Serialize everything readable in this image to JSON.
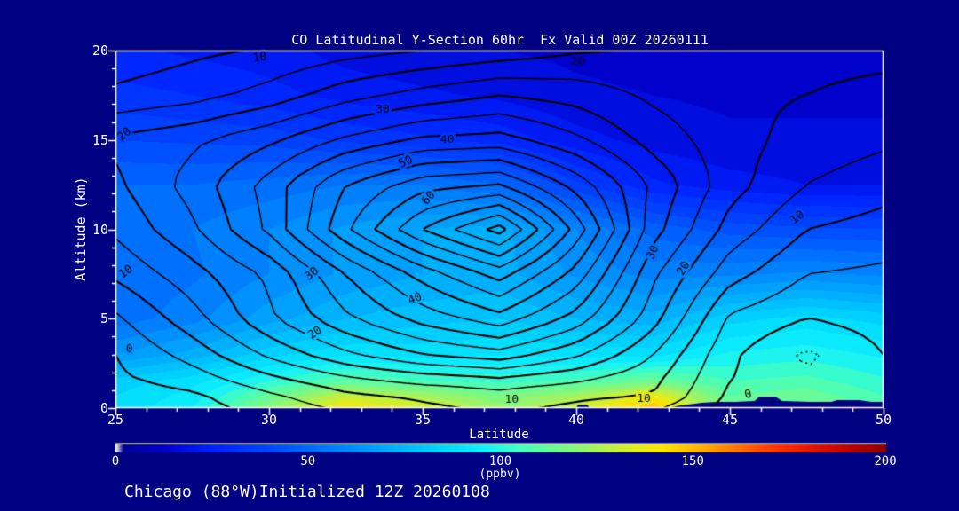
{
  "title": "CO Latitudinal Y-Section 60hr  Fx Valid 00Z 20260111",
  "footer": "Chicago (88°W)Initialized 12Z 20260108",
  "colors": {
    "background": "#000082",
    "frame": "#ffffff",
    "contour_line": "#000000",
    "text": "#ffffff"
  },
  "chart_data": {
    "type": "heatmap",
    "title": "CO Latitudinal Y-Section 60hr  Fx Valid 00Z 20260111",
    "xlabel": "Latitude",
    "ylabel": "Altitude (km)",
    "xlim": [
      25,
      50
    ],
    "ylim": [
      0,
      20
    ],
    "x_ticks_major": [
      25,
      30,
      35,
      40,
      45,
      50
    ],
    "x_minor_step": 1,
    "y_ticks_major": [
      0,
      5,
      10,
      15,
      20
    ],
    "y_minor_step": 1,
    "fill_units": "ppbv",
    "colorbar": {
      "min": 0,
      "max": 200,
      "ticks": [
        0,
        50,
        100,
        150,
        200
      ],
      "label": "(ppbv)"
    },
    "palette": [
      [
        0,
        "#ffffff"
      ],
      [
        2,
        "#000090"
      ],
      [
        12,
        "#0000c8"
      ],
      [
        25,
        "#0020ff"
      ],
      [
        40,
        "#0048ff"
      ],
      [
        55,
        "#0078ff"
      ],
      [
        70,
        "#00a8ff"
      ],
      [
        85,
        "#00d8ff"
      ],
      [
        95,
        "#10f0ff"
      ],
      [
        105,
        "#45ffbe"
      ],
      [
        115,
        "#73fa8b"
      ],
      [
        125,
        "#a8f25c"
      ],
      [
        135,
        "#dfee22"
      ],
      [
        142,
        "#ffe400"
      ],
      [
        152,
        "#ffb000"
      ],
      [
        162,
        "#ff7000"
      ],
      [
        172,
        "#ff3000"
      ],
      [
        182,
        "#e01000"
      ],
      [
        192,
        "#b40000"
      ],
      [
        200,
        "#8c0000"
      ]
    ],
    "fill_band_step": 5,
    "grid_lat": [
      25,
      27.5,
      30,
      32.5,
      35,
      37.5,
      40,
      42.5,
      45,
      47.5,
      50
    ],
    "grid_alt": [
      0,
      0.7,
      1.5,
      3,
      5,
      7.5,
      10,
      12.5,
      15,
      17.5,
      20
    ],
    "fill_values": [
      [
        86,
        95,
        120,
        142,
        135,
        122,
        132,
        150,
        112,
        118,
        108
      ],
      [
        85,
        92,
        112,
        130,
        124,
        116,
        124,
        138,
        110,
        113,
        105
      ],
      [
        82,
        88,
        100,
        110,
        106,
        103,
        107,
        114,
        105,
        107,
        101
      ],
      [
        65,
        72,
        83,
        89,
        88,
        90,
        88,
        88,
        96,
        98,
        94
      ],
      [
        52,
        58,
        68,
        75,
        78,
        80,
        75,
        72,
        83,
        87,
        83
      ],
      [
        50,
        54,
        60,
        66,
        70,
        72,
        64,
        58,
        59,
        61,
        59
      ],
      [
        52,
        55,
        60,
        66,
        70,
        72,
        60,
        48,
        43,
        41,
        40
      ],
      [
        50,
        50,
        52,
        55,
        55,
        50,
        36,
        26,
        22,
        20,
        20
      ],
      [
        40,
        39,
        38,
        34,
        31,
        28,
        22,
        18,
        16,
        16,
        16
      ],
      [
        32,
        30,
        27,
        23,
        21,
        19,
        16,
        15,
        14,
        14,
        14
      ],
      [
        26,
        24,
        22,
        18,
        16,
        15,
        14,
        13,
        13,
        13,
        13
      ]
    ],
    "contour_values": [
      [
        -4,
        -2,
        2,
        6,
        9,
        11,
        9,
        6,
        -2,
        -5,
        -3
      ],
      [
        -3,
        -1,
        4,
        9,
        11,
        13,
        11,
        10,
        -1,
        -5,
        -2
      ],
      [
        -1,
        2,
        8,
        13,
        16,
        18,
        15,
        11,
        0,
        -4,
        -1
      ],
      [
        0,
        7,
        16,
        24,
        30,
        33,
        26,
        15,
        1,
        -6,
        0
      ],
      [
        4,
        13,
        24,
        34,
        42,
        48,
        38,
        22,
        4,
        0,
        2
      ],
      [
        11,
        18,
        26,
        40,
        52,
        62,
        48,
        26,
        12,
        5,
        4
      ],
      [
        16,
        24,
        36,
        54,
        70,
        82,
        58,
        32,
        18,
        10,
        8
      ],
      [
        19,
        27,
        37,
        50,
        58,
        60,
        48,
        34,
        22,
        15,
        12
      ],
      [
        21,
        24,
        29,
        36,
        41,
        42,
        36,
        28,
        22,
        18,
        16
      ],
      [
        11,
        13,
        17,
        23,
        27,
        30,
        28,
        24,
        21,
        20,
        19
      ],
      [
        7,
        9,
        10.5,
        13,
        15,
        17,
        19.5,
        20.5,
        21,
        21,
        21
      ]
    ],
    "contour_interval": 5,
    "contour_label_every": 10,
    "contour_labels": [
      {
        "text": "0",
        "lat": 25.45,
        "alt": 3.3,
        "rot": 0
      },
      {
        "text": "10",
        "lat": 25.35,
        "alt": 7.6,
        "rot": -35
      },
      {
        "text": "20",
        "lat": 25.3,
        "alt": 15.3,
        "rot": -40
      },
      {
        "text": "10",
        "lat": 29.7,
        "alt": 19.6,
        "rot": -8
      },
      {
        "text": "30",
        "lat": 33.7,
        "alt": 16.7,
        "rot": 0
      },
      {
        "text": "20",
        "lat": 40.05,
        "alt": 19.35,
        "rot": 0
      },
      {
        "text": "40",
        "lat": 35.8,
        "alt": 15.0,
        "rot": 0
      },
      {
        "text": "50",
        "lat": 34.45,
        "alt": 13.75,
        "rot": -25
      },
      {
        "text": "60",
        "lat": 35.2,
        "alt": 11.75,
        "rot": -50
      },
      {
        "text": "40",
        "lat": 34.75,
        "alt": 6.1,
        "rot": -20
      },
      {
        "text": "30",
        "lat": 31.4,
        "alt": 7.5,
        "rot": -40
      },
      {
        "text": "20",
        "lat": 31.5,
        "alt": 4.2,
        "rot": -35
      },
      {
        "text": "30",
        "lat": 42.5,
        "alt": 8.7,
        "rot": -65
      },
      {
        "text": "20",
        "lat": 43.5,
        "alt": 7.8,
        "rot": -60
      },
      {
        "text": "10",
        "lat": 47.2,
        "alt": 10.65,
        "rot": -38
      },
      {
        "text": "10",
        "lat": 37.9,
        "alt": 0.45,
        "rot": 0
      },
      {
        "text": "10",
        "lat": 42.2,
        "alt": 0.5,
        "rot": 0
      },
      {
        "text": "0",
        "lat": 45.6,
        "alt": 0.75,
        "rot": -15
      }
    ],
    "terrain": [
      [
        [
          40.0,
          0
        ],
        [
          40.05,
          0.18
        ],
        [
          40.35,
          0.18
        ],
        [
          40.45,
          0
        ]
      ],
      [
        [
          43.0,
          0
        ],
        [
          43.3,
          0.12
        ],
        [
          44.1,
          0.3
        ],
        [
          44.6,
          0.35
        ],
        [
          45.2,
          0.35
        ],
        [
          45.8,
          0.4
        ],
        [
          45.95,
          0.62
        ],
        [
          46.5,
          0.62
        ],
        [
          46.7,
          0.4
        ],
        [
          47.6,
          0.35
        ],
        [
          48.3,
          0.35
        ],
        [
          48.5,
          0.45
        ],
        [
          49.2,
          0.45
        ],
        [
          49.6,
          0.35
        ],
        [
          50,
          0.35
        ],
        [
          50,
          0
        ]
      ]
    ]
  }
}
